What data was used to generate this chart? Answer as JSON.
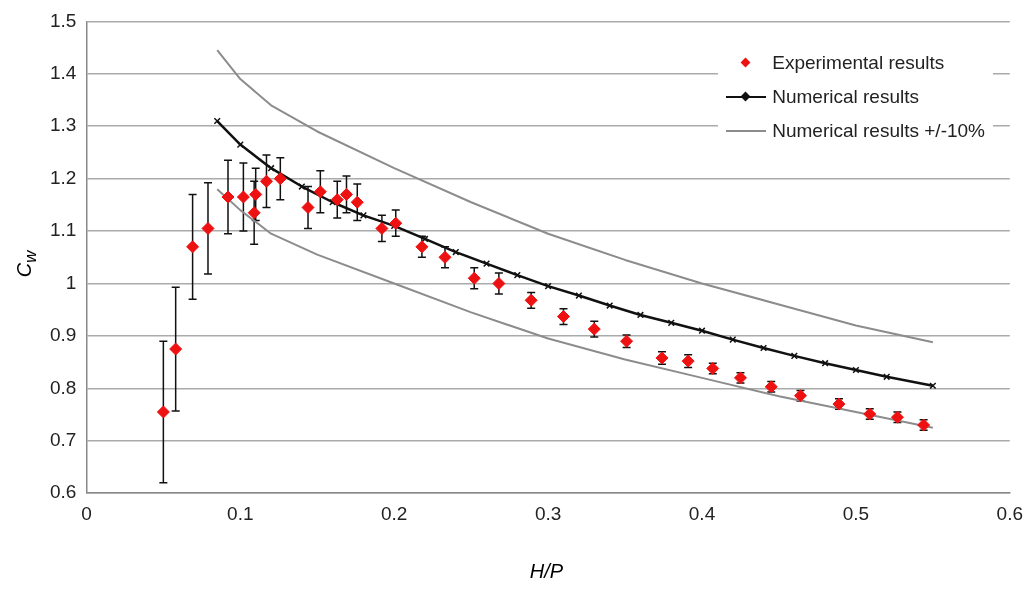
{
  "chart_data": {
    "type": "scatter",
    "xlabel": "H/P",
    "ylabel": "C$_{w}$",
    "xlim": [
      0,
      0.6
    ],
    "xticks": [
      0,
      0.1,
      0.2,
      0.3,
      0.4,
      0.5,
      0.6
    ],
    "ylim": [
      0.6,
      1.5
    ],
    "yticks": [
      0.6,
      0.7,
      0.8,
      0.9,
      1,
      1.1,
      1.2,
      1.3,
      1.4,
      1.5
    ],
    "grid": "y",
    "legend": "top right",
    "series": [
      {
        "name": "Experimental results",
        "color": "#ee1111",
        "marker": "diamond",
        "x": [
          0.05,
          0.058,
          0.069,
          0.079,
          0.092,
          0.102,
          0.11,
          0.109,
          0.117,
          0.126,
          0.144,
          0.152,
          0.163,
          0.169,
          0.176,
          0.192,
          0.201,
          0.218,
          0.233,
          0.252,
          0.268,
          0.289,
          0.31,
          0.33,
          0.351,
          0.374,
          0.391,
          0.407,
          0.425,
          0.445,
          0.464,
          0.489,
          0.509,
          0.527,
          0.544
        ],
        "values": [
          0.755,
          0.875,
          1.07,
          1.105,
          1.165,
          1.165,
          1.17,
          1.135,
          1.195,
          1.2,
          1.145,
          1.175,
          1.16,
          1.17,
          1.155,
          1.105,
          1.115,
          1.07,
          1.05,
          1.01,
          1.0,
          0.968,
          0.937,
          0.913,
          0.89,
          0.858,
          0.852,
          0.838,
          0.82,
          0.803,
          0.786,
          0.77,
          0.751,
          0.745,
          0.73
        ],
        "errors": [
          0.135,
          0.118,
          0.1,
          0.087,
          0.07,
          0.065,
          0.05,
          0.06,
          0.05,
          0.04,
          0.04,
          0.04,
          0.035,
          0.035,
          0.035,
          0.025,
          0.025,
          0.02,
          0.02,
          0.02,
          0.02,
          0.015,
          0.015,
          0.015,
          0.012,
          0.012,
          0.012,
          0.01,
          0.01,
          0.01,
          0.01,
          0.01,
          0.01,
          0.01,
          0.01
        ]
      },
      {
        "name": "Numerical results",
        "type": "line",
        "color": "#111111",
        "marker": "cross",
        "line_style": "solid",
        "x": [
          0.085,
          0.1,
          0.12,
          0.14,
          0.16,
          0.18,
          0.2,
          0.22,
          0.24,
          0.26,
          0.28,
          0.3,
          0.32,
          0.34,
          0.36,
          0.38,
          0.4,
          0.42,
          0.44,
          0.46,
          0.48,
          0.5,
          0.52,
          0.55
        ],
        "values": [
          1.31,
          1.265,
          1.22,
          1.185,
          1.155,
          1.13,
          1.11,
          1.085,
          1.06,
          1.038,
          1.016,
          0.995,
          0.977,
          0.958,
          0.94,
          0.925,
          0.91,
          0.893,
          0.877,
          0.862,
          0.848,
          0.835,
          0.822,
          0.805
        ]
      },
      {
        "name": "Numerical results +/-10%",
        "type": "line",
        "color": "#8c8c8c",
        "marker": "none",
        "line_style": "solid",
        "x": [
          0.085,
          0.1,
          0.12,
          0.15,
          0.2,
          0.25,
          0.3,
          0.35,
          0.4,
          0.45,
          0.5,
          0.55
        ],
        "values": [
          1.445,
          1.39,
          1.34,
          1.29,
          1.22,
          1.155,
          1.095,
          1.045,
          1.0,
          0.96,
          0.92,
          0.888
        ]
      },
      {
        "type": "line",
        "color": "#8c8c8c",
        "marker": "none",
        "line_style": "solid",
        "x": [
          0.085,
          0.1,
          0.12,
          0.15,
          0.2,
          0.25,
          0.3,
          0.35,
          0.4,
          0.45,
          0.5,
          0.55
        ],
        "values": [
          1.18,
          1.14,
          1.095,
          1.055,
          1.0,
          0.945,
          0.895,
          0.855,
          0.82,
          0.785,
          0.755,
          0.725
        ]
      }
    ]
  }
}
